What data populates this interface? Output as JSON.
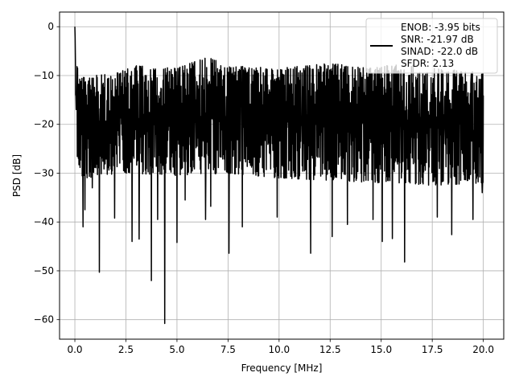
{
  "chart_data": {
    "type": "line",
    "xlabel": "Frequency [MHz]",
    "ylabel": "PSD [dB]",
    "xlim": [
      -0.75,
      21.0
    ],
    "ylim": [
      -64.0,
      3.0
    ],
    "xticks": [
      0.0,
      2.5,
      5.0,
      7.5,
      10.0,
      12.5,
      15.0,
      17.5,
      20.0
    ],
    "xtick_labels": [
      "0.0",
      "2.5",
      "5.0",
      "7.5",
      "10.0",
      "12.5",
      "15.0",
      "17.5",
      "20.0"
    ],
    "yticks": [
      0,
      -10,
      -20,
      -30,
      -40,
      -50,
      -60
    ],
    "ytick_labels": [
      "0",
      "−10",
      "−20",
      "−30",
      "−40",
      "−50",
      "−60"
    ],
    "grid": true,
    "legend_placement": "top-right",
    "series": [
      {
        "color": "#000000",
        "x_range": [
          0.0,
          20.0
        ],
        "band_top": [
          [
            0.0,
            0.0
          ],
          [
            0.05,
            -4.5
          ],
          [
            0.1,
            -6.0
          ],
          [
            0.2,
            -10.0
          ],
          [
            0.5,
            -10.5
          ],
          [
            1.0,
            -10.0
          ],
          [
            2.0,
            -9.5
          ],
          [
            3.0,
            -8.0
          ],
          [
            5.0,
            -8.5
          ],
          [
            6.6,
            -6.0
          ],
          [
            7.5,
            -8.0
          ],
          [
            10.0,
            -8.5
          ],
          [
            12.5,
            -7.5
          ],
          [
            14.5,
            -8.5
          ],
          [
            16.0,
            -7.5
          ],
          [
            17.5,
            -8.5
          ],
          [
            19.0,
            -9.0
          ],
          [
            20.0,
            -9.5
          ]
        ],
        "band_bottom": [
          [
            0.0,
            -15.0
          ],
          [
            0.15,
            -30.5
          ],
          [
            0.5,
            -31.0
          ],
          [
            2.5,
            -30.0
          ],
          [
            5.0,
            -30.5
          ],
          [
            7.5,
            -30.0
          ],
          [
            10.0,
            -31.0
          ],
          [
            12.5,
            -31.5
          ],
          [
            15.0,
            -32.0
          ],
          [
            17.5,
            -32.5
          ],
          [
            20.0,
            -32.0
          ]
        ],
        "dips": [
          [
            0.4,
            -41.0
          ],
          [
            0.5,
            -37.5
          ],
          [
            0.85,
            -33.0
          ],
          [
            1.2,
            -50.3
          ],
          [
            1.95,
            -39.2
          ],
          [
            2.8,
            -44.0
          ],
          [
            3.15,
            -43.5
          ],
          [
            3.75,
            -52.0
          ],
          [
            4.05,
            -39.5
          ],
          [
            4.4,
            -60.8
          ],
          [
            5.0,
            -44.2
          ],
          [
            5.4,
            -35.5
          ],
          [
            6.4,
            -39.5
          ],
          [
            6.65,
            -36.8
          ],
          [
            7.55,
            -46.4
          ],
          [
            8.2,
            -41.0
          ],
          [
            9.9,
            -39.0
          ],
          [
            11.55,
            -46.4
          ],
          [
            12.6,
            -43.0
          ],
          [
            13.35,
            -40.5
          ],
          [
            14.6,
            -39.5
          ],
          [
            15.05,
            -44.0
          ],
          [
            15.55,
            -43.4
          ],
          [
            16.15,
            -48.2
          ],
          [
            17.75,
            -39.0
          ],
          [
            18.45,
            -42.6
          ],
          [
            19.5,
            -39.5
          ],
          [
            19.95,
            -34.0
          ]
        ]
      }
    ],
    "legend": [
      {
        "label": "ENOB: -3.95 bits"
      },
      {
        "label": "SNR: -21.97 dB"
      },
      {
        "label": "SINAD: -22.0 dB"
      },
      {
        "label": "SFDR: 2.13"
      }
    ]
  }
}
